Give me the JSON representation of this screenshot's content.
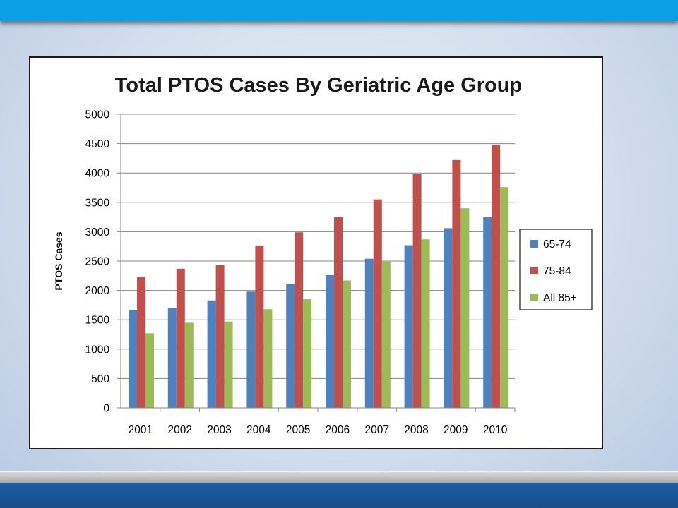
{
  "chart_data": {
    "type": "bar",
    "title": "Total PTOS Cases By Geriatric Age Group",
    "ylabel": "PTOS Cases",
    "xlabel": "",
    "categories": [
      "2001",
      "2002",
      "2003",
      "2004",
      "2005",
      "2006",
      "2007",
      "2008",
      "2009",
      "2010"
    ],
    "series": [
      {
        "name": "65-74",
        "color": "#4f81bd",
        "values": [
          1670,
          1700,
          1830,
          1980,
          2110,
          2260,
          2540,
          2770,
          3060,
          3250
        ]
      },
      {
        "name": "75-84",
        "color": "#c0504d",
        "values": [
          2230,
          2370,
          2430,
          2760,
          2990,
          3250,
          3550,
          3980,
          4220,
          4480
        ]
      },
      {
        "name": "All 85+",
        "color": "#9bbb59",
        "values": [
          1270,
          1450,
          1470,
          1680,
          1850,
          2170,
          2490,
          2870,
          3400,
          3760
        ]
      }
    ],
    "ylim": [
      0,
      5000
    ],
    "yticks": [
      "0",
      "500",
      "1000",
      "1500",
      "2000",
      "2500",
      "3000",
      "3500",
      "4000",
      "4500",
      "5000"
    ],
    "grid": true,
    "legend_position": "right"
  }
}
